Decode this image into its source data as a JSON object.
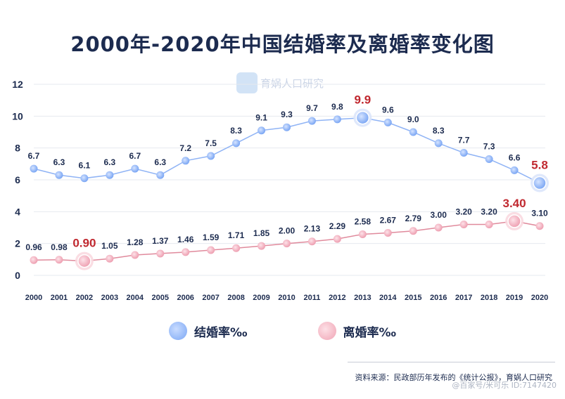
{
  "chart_data": {
    "type": "line",
    "title": "2000年-2020年中国结婚率及离婚率变化图",
    "x": [
      "2000",
      "2001",
      "2002",
      "2003",
      "2004",
      "2005",
      "2006",
      "2007",
      "2008",
      "2009",
      "2010",
      "2011",
      "2012",
      "2013",
      "2014",
      "2015",
      "2016",
      "2017",
      "2018",
      "2019",
      "2020"
    ],
    "ylim": [
      0,
      12
    ],
    "yticks": [
      "0",
      "2",
      "4",
      "6",
      "8",
      "10",
      "12"
    ],
    "grid": true,
    "legend_position": "bottom",
    "series": [
      {
        "name": "结婚率‰",
        "color": "#8fb3f5",
        "values": [
          6.7,
          6.3,
          6.1,
          6.3,
          6.7,
          6.3,
          7.2,
          7.5,
          8.3,
          9.1,
          9.3,
          9.7,
          9.8,
          9.9,
          9.6,
          9.0,
          8.3,
          7.7,
          7.3,
          6.6,
          5.8
        ],
        "labels": [
          "6.7",
          "6.3",
          "6.1",
          "6.3",
          "6.7",
          "6.3",
          "7.2",
          "7.5",
          "8.3",
          "9.1",
          "9.3",
          "9.7",
          "9.8",
          "9.9",
          "9.6",
          "9.0",
          "8.3",
          "7.7",
          "7.3",
          "6.6",
          "5.8"
        ],
        "highlight": [
          "2013",
          "2020"
        ]
      },
      {
        "name": "离婚率‰",
        "color": "#e08a9c",
        "values": [
          0.96,
          0.98,
          0.9,
          1.05,
          1.28,
          1.37,
          1.46,
          1.59,
          1.71,
          1.85,
          2.0,
          2.13,
          2.29,
          2.58,
          2.67,
          2.79,
          3.0,
          3.2,
          3.2,
          3.4,
          3.1
        ],
        "labels": [
          "0.96",
          "0.98",
          "0.90",
          "1.05",
          "1.28",
          "1.37",
          "1.46",
          "1.59",
          "1.71",
          "1.85",
          "2.00",
          "2.13",
          "2.29",
          "2.58",
          "2.67",
          "2.79",
          "3.00",
          "3.20",
          "3.20",
          "3.40",
          "3.10"
        ],
        "highlight": [
          "2002",
          "2019"
        ]
      }
    ],
    "highlight_color": "#c0282f",
    "label_color": "#1c2b4f",
    "source": "资料来源：民政部历年发布的《统计公报》，育娲人口研究"
  },
  "watermark": "育娲人口研究",
  "overlay_text": "@百家号/米可乐 ID:7147420"
}
